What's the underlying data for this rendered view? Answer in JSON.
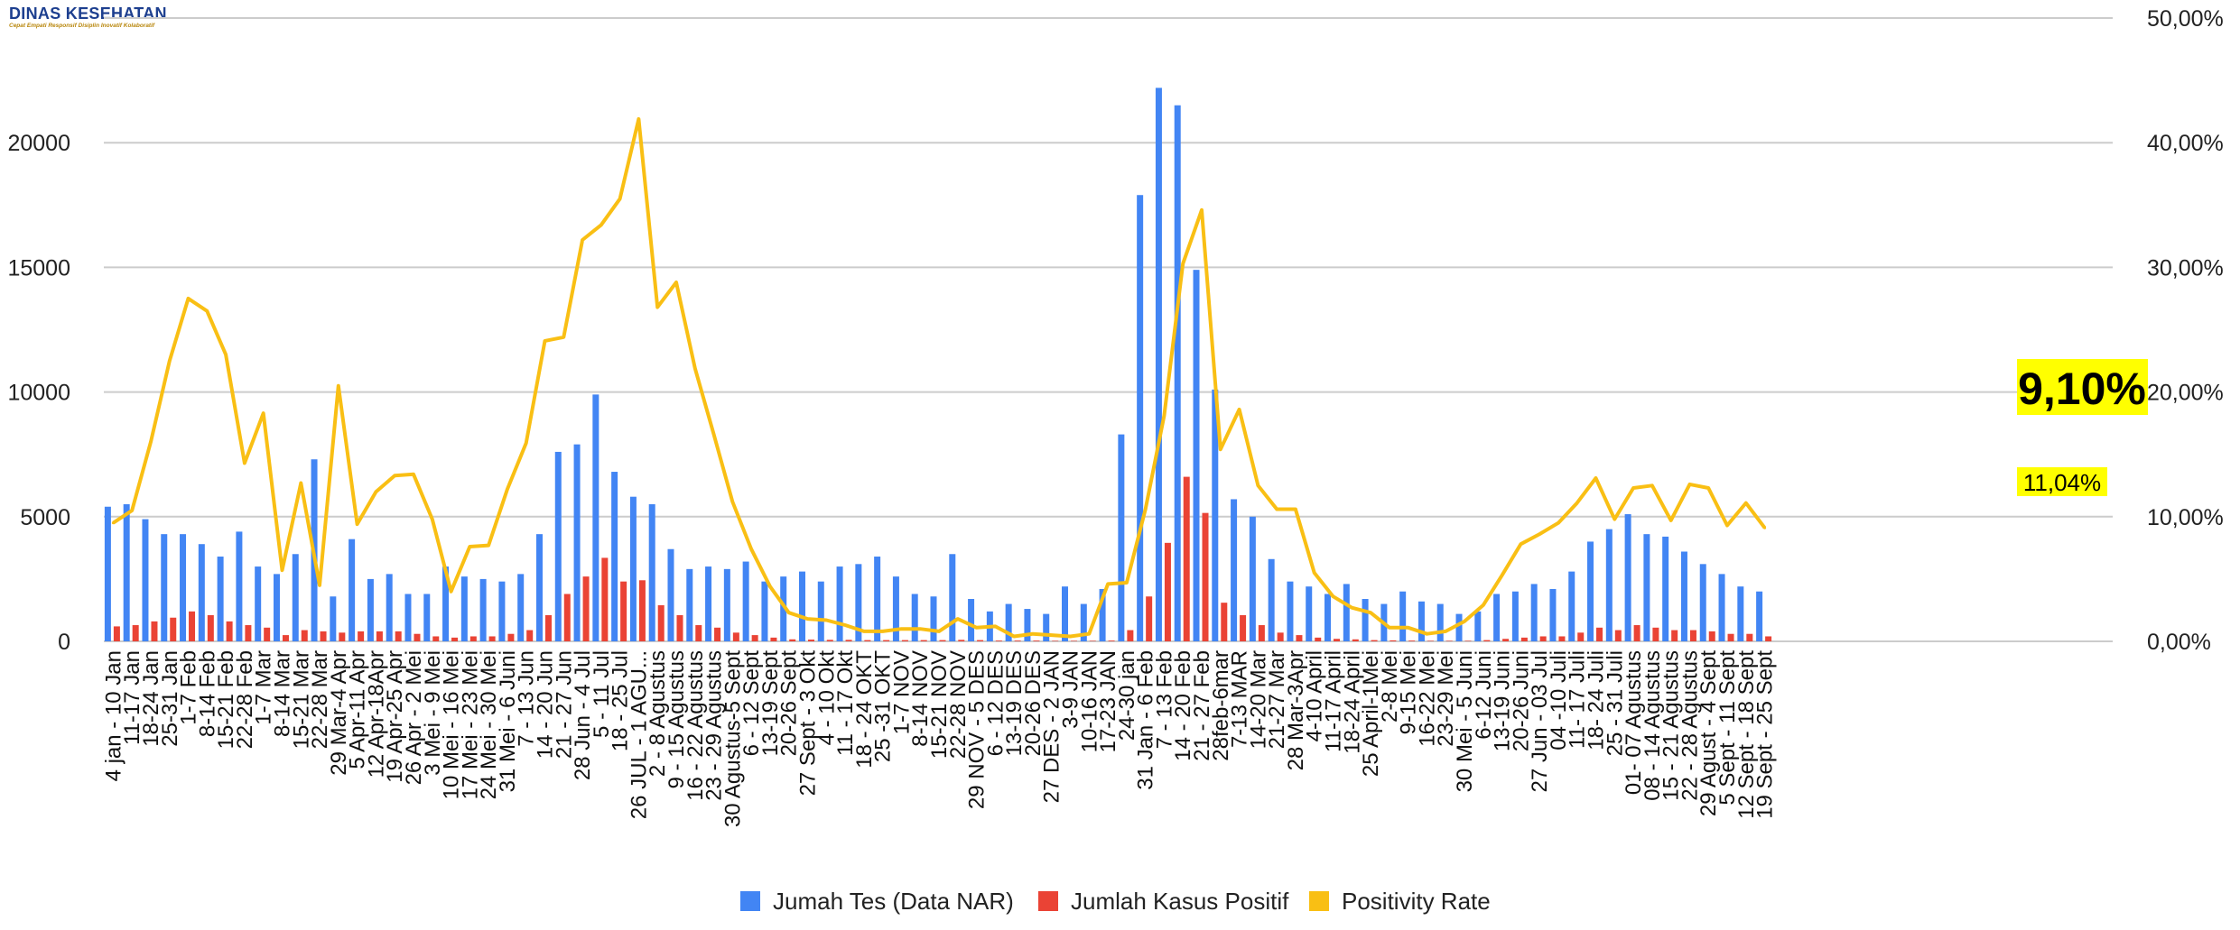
{
  "logo": {
    "title": "DINAS KESEHATAN",
    "tagline": "Cepat Empati Responsif Disiplin Inovatif Kolaboratif"
  },
  "colors": {
    "tests": "#4285F4",
    "positives": "#EA4335",
    "rate": "#F9BF14",
    "grid": "#cccccc",
    "highlight_bg": "#FFFF00"
  },
  "chart_data": {
    "type": "bar",
    "combo_line_series": "Positivity Rate",
    "categories": [
      "4 jan - 10 Jan",
      "11-17 Jan",
      "18-24 Jan",
      "25-31 Jan",
      "1-7 Feb",
      "8-14 Feb",
      "15-21 Feb",
      "22-28 Feb",
      "1-7 Mar",
      "8-14 Mar",
      "15-21 Mar",
      "22-28 Mar",
      "29 Mar-4 Apr",
      "5 Apr-11 Apr",
      "12 Apr-18Apr",
      "19 Apr-25 Apr",
      "26 Apr - 2 Mei",
      "3 Mei - 9 Mei",
      "10 Mei - 16 Mei",
      "17 Mei - 23 Mei",
      "24 Mei - 30 Mei",
      "31 Mei - 6 Juni",
      "7 - 13 Jun",
      "14 - 20 Jun",
      "21 - 27 Jun",
      "28 Jun - 4 Jul",
      "5 - 11 Jul",
      "18 - 25 Jul",
      "26 JUL - 1 AGU...",
      "2 - 8 Agustus",
      "9 - 15 Agustus",
      "16 - 22 Agustus",
      "23 - 29 Agustus",
      "30 Agustus-5 Sept",
      "6 - 12 Sept",
      "13-19 Sept",
      "20-26 Sept",
      "27 Sept - 3 Okt",
      "4 - 10 Okt",
      "11 - 17 Okt",
      "18 - 24 OKT",
      "25 -31 OKT",
      "1-7 NOV",
      "8-14 NOV",
      "15-21 NOV",
      "22-28 NOV",
      "29 NOV - 5 DES",
      "6 - 12 DES",
      "13-19 DES",
      "20-26 DES",
      "27 DES - 2 JAN",
      "3-9 JAN",
      "10-16 JAN",
      "17-23 JAN",
      "24-30 jan",
      "31 Jan - 6 Feb",
      "7 - 13 Feb",
      "14 - 20 Feb",
      "21 - 27 Feb",
      "28feb-6mar",
      "7-13 MAR",
      "14-20 Mar",
      "21-27 Mar",
      "28 Mar-3Apr",
      "4-10 April",
      "11-17 April",
      "18-24 April",
      "25 April-1Mei",
      "2-8 Mei",
      "9-15 Mei",
      "16-22 Mei",
      "23-29 Mei",
      "30 Mei - 5 Juni",
      "6-12 Juni",
      "13-19 Juni",
      "20-26 Juni",
      "27 Jun - 03 Jul",
      "04 -10 Juli",
      "11- 17 Juli",
      "18- 24 Juli",
      "25 - 31 Juli",
      "01- 07 Agustus",
      "08 - 14 Agustus",
      "15 - 21 Agustus",
      "22 - 28 Agustus",
      "29 Agust - 4 Sept",
      "5 Sept - 11 Sept",
      "12 Sept - 18 Sept",
      "19 Sept - 25 Sept"
    ],
    "series": [
      {
        "name": "Jumah Tes (Data NAR)",
        "axis": "left",
        "kind": "bar",
        "values": [
          5400,
          5500,
          4900,
          4300,
          4300,
          3900,
          3400,
          4400,
          3000,
          2700,
          3500,
          7300,
          1800,
          4100,
          2500,
          2700,
          1900,
          1900,
          3000,
          2600,
          2500,
          2400,
          2700,
          4300,
          7600,
          7900,
          9900,
          6800,
          5800,
          5500,
          3700,
          2900,
          3000,
          2900,
          3200,
          2400,
          2600,
          2800,
          2400,
          3000,
          3100,
          3400,
          2600,
          1900,
          1800,
          3500,
          1700,
          1200,
          1500,
          1300,
          1100,
          2200,
          1500,
          2100,
          8300,
          17900,
          22200,
          21500,
          14900,
          10100,
          5700,
          5000,
          3300,
          2400,
          2200,
          1900,
          2300,
          1700,
          1500,
          2000,
          1600,
          1500,
          1100,
          1200,
          1900,
          2000,
          2300,
          2100,
          2800,
          4000,
          4500,
          5100,
          4300,
          4200,
          3600,
          3100,
          2700,
          2200,
          2000
        ]
      },
      {
        "name": "Jumlah Kasus Positif",
        "axis": "left",
        "kind": "bar",
        "values": [
          600,
          650,
          800,
          950,
          1200,
          1050,
          800,
          650,
          550,
          250,
          450,
          400,
          350,
          400,
          400,
          400,
          300,
          200,
          150,
          200,
          200,
          300,
          450,
          1050,
          1900,
          2600,
          3350,
          2400,
          2450,
          1450,
          1050,
          650,
          550,
          350,
          250,
          150,
          80,
          70,
          60,
          60,
          50,
          50,
          50,
          50,
          50,
          60,
          50,
          30,
          30,
          30,
          20,
          20,
          20,
          30,
          450,
          1800,
          3950,
          6600,
          5150,
          1550,
          1050,
          650,
          350,
          250,
          150,
          100,
          80,
          50,
          40,
          30,
          20,
          20,
          20,
          50,
          100,
          150,
          200,
          200,
          350,
          550,
          450,
          650,
          550,
          450,
          450,
          400,
          300,
          300,
          200
        ]
      },
      {
        "name": "Positivity Rate",
        "axis": "right",
        "kind": "line",
        "values": [
          9.5,
          10.5,
          16,
          22.5,
          27.5,
          26.5,
          23,
          14.3,
          18.3,
          5.7,
          12.7,
          4.5,
          20.5,
          9.4,
          12,
          13.3,
          13.4,
          9.8,
          4,
          7.6,
          7.7,
          12.2,
          15.9,
          24.1,
          24.4,
          32.2,
          33.4,
          35.5,
          41.9,
          26.8,
          28.8,
          21.9,
          16.6,
          11.2,
          7.4,
          4.4,
          2.3,
          1.8,
          1.7,
          1.3,
          0.8,
          0.8,
          1,
          1,
          0.8,
          1.8,
          1.1,
          1.2,
          0.4,
          0.6,
          0.5,
          0.4,
          0.6,
          4.6,
          4.7,
          10.6,
          18.1,
          30.3,
          34.6,
          15.4,
          18.6,
          12.5,
          10.6,
          10.6,
          5.5,
          3.6,
          2.7,
          2.3,
          1.1,
          1.1,
          0.6,
          0.8,
          1.6,
          2.9,
          5.3,
          7.8,
          8.6,
          9.5,
          11.1,
          13.1,
          9.8,
          12.3,
          12.5,
          9.7,
          12.6,
          12.3,
          9.3,
          11.1,
          9.1
        ]
      }
    ],
    "y_left": {
      "min": 0,
      "max": 25000,
      "ticks": [
        "0",
        "5000",
        "10000",
        "15000",
        "20000"
      ]
    },
    "y_right": {
      "min": 0,
      "max": 50,
      "ticks": [
        "0,00%",
        "10,00%",
        "20,00%",
        "30,00%",
        "40,00%",
        "50,00%"
      ]
    },
    "grid": true,
    "legend_position": "bottom-center",
    "annotations": [
      {
        "text": "9,10%",
        "style": "big-highlight"
      },
      {
        "text": "11,04%",
        "style": "small-highlight"
      }
    ],
    "title": "",
    "xlabel": "",
    "ylabel": ""
  }
}
